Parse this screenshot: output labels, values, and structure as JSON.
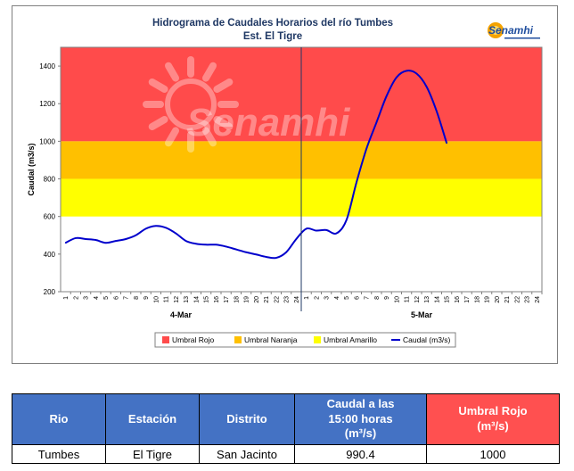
{
  "chart_data": {
    "type": "line",
    "title": "Hidrograma de Caudales Horarios del río Tumbes",
    "subtitle": "Est. El Tigre",
    "logo_text": "Senamhi",
    "watermark_text": "Senamhi",
    "ylabel": "Caudal  (m3/s)",
    "ylim": [
      200,
      1500
    ],
    "yticks": [
      200,
      400,
      600,
      800,
      1000,
      1200,
      1400
    ],
    "day_labels": [
      "4-Mar",
      "5-Mar"
    ],
    "x_tick_labels": [
      "1",
      "2",
      "3",
      "4",
      "5",
      "6",
      "7",
      "8",
      "9",
      "10",
      "11",
      "12",
      "13",
      "14",
      "15",
      "16",
      "17",
      "18",
      "19",
      "20",
      "21",
      "22",
      "23",
      "24",
      "1",
      "2",
      "3",
      "4",
      "5",
      "6",
      "7",
      "8",
      "9",
      "10",
      "11",
      "12",
      "13",
      "14",
      "15",
      "16",
      "17",
      "18",
      "19",
      "20",
      "21",
      "22",
      "23",
      "24"
    ],
    "thresholds": [
      {
        "name": "Umbral Rojo",
        "from": 1000,
        "to": 1500,
        "color": "#ff4b4b"
      },
      {
        "name": "Umbral Naranja",
        "from": 800,
        "to": 1000,
        "color": "#ffc000"
      },
      {
        "name": "Umbral Amarillo",
        "from": 600,
        "to": 800,
        "color": "#ffff00"
      }
    ],
    "series": [
      {
        "name": "Caudal (m3/s)",
        "color": "#0000cc",
        "values": [
          460,
          485,
          480,
          475,
          460,
          470,
          480,
          500,
          535,
          550,
          540,
          510,
          470,
          455,
          450,
          450,
          440,
          425,
          410,
          398,
          385,
          380,
          410,
          480,
          535,
          525,
          528,
          510,
          580,
          780,
          960,
          1100,
          1240,
          1340,
          1375,
          1360,
          1290,
          1160,
          990.4
        ]
      }
    ],
    "legend": {
      "placement": "bottom",
      "entries": [
        "Umbral Rojo",
        "Umbral Naranja",
        "Umbral Amarillo",
        "Caudal (m3/s)"
      ]
    }
  },
  "table": {
    "headers": [
      "Rio",
      "Estación",
      "Distrito",
      "Caudal a las 15:00 horas (m³/s)",
      "Umbral Rojo (m³/s)"
    ],
    "row": [
      "Tumbes",
      "El Tigre",
      "San Jacinto",
      "990.4",
      "1000"
    ]
  }
}
